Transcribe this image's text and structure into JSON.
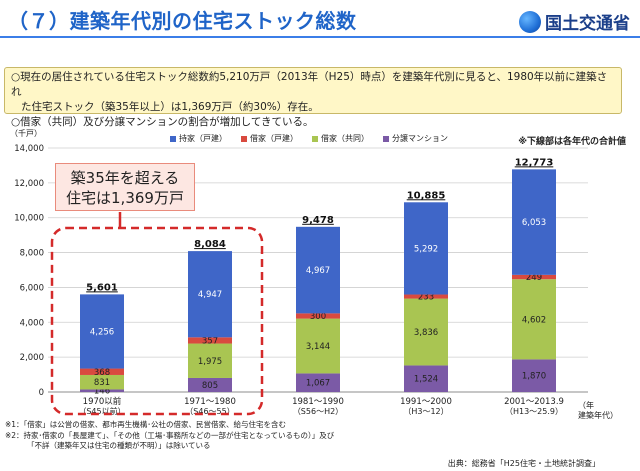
{
  "header": {
    "title": "（７）建築年代別の住宅ストック総数",
    "logo_text": "国土交通省"
  },
  "summary": {
    "line1": "○現在の居住されている住宅ストック総数約5,210万戸（2013年（H25）時点）を建築年代別に見ると、1980年以前に建築され",
    "line2": "た住宅ストック（築35年以上）は1,369万戸（約30%）存在。",
    "line3": "○借家（共同）及び分譲マンションの割合が増加してきている。"
  },
  "callout": {
    "line1": "築35年を超える",
    "line2": "住宅は1,369万戸"
  },
  "note_right": "※下線部は各年代の合計値",
  "unit_left": "（千戸）",
  "unit_right": {
    "line1": "（年",
    "line2": "建築年代）"
  },
  "footnotes": {
    "n1": "※1：「借家」は公営の借家、都市再生機構･公社の借家、民営借家、給与住宅を含む",
    "n2": "※2：持家･借家の「長屋建て」、「その他（工場･事務所などの一部が住宅となっているもの）」及び",
    "n3": "「不詳（建築年又は住宅の種類が不明）」は除いている"
  },
  "source": "出典：総務省「H25住宅・土地統計調査」",
  "colors": {
    "owned": "#3f66c8",
    "rent_detached": "#d94a3f",
    "rent_apartment": "#a9c552",
    "condo": "#7b5aa6",
    "accent": "#d42a2a"
  },
  "chart_data": {
    "type": "bar",
    "stacked": true,
    "categories": [
      "1970以前",
      "1971～1980",
      "1981～1990",
      "1991～2000",
      "2001～2013.9"
    ],
    "sub_categories": [
      "（S45以前）",
      "（S46～55）",
      "（S56～H2）",
      "（H3～12）",
      "（H13～25.9）"
    ],
    "series": [
      {
        "name": "分譲マンション",
        "color": "#7b5aa6",
        "values": [
          146,
          805,
          1067,
          1524,
          1870
        ]
      },
      {
        "name": "借家（共同）",
        "color": "#a9c552",
        "values": [
          831,
          1975,
          3144,
          3836,
          4602
        ]
      },
      {
        "name": "借家（戸建）",
        "color": "#d94a3f",
        "values": [
          368,
          357,
          300,
          233,
          249
        ]
      },
      {
        "name": "持家（戸建）",
        "color": "#3f66c8",
        "values": [
          4256,
          4947,
          4967,
          5292,
          6053
        ]
      }
    ],
    "legend_order": [
      "持家（戸建）",
      "借家（戸建）",
      "借家（共同）",
      "分譲マンション"
    ],
    "totals": [
      "5,601",
      "8,084",
      "9,478",
      "10,885",
      "12,773"
    ],
    "ylim": [
      0,
      14000
    ],
    "yticks": [
      "0",
      "2,000",
      "4,000",
      "6,000",
      "8,000",
      "10,000",
      "12,000",
      "14,000"
    ],
    "ylabel": "（千戸）",
    "grid": true,
    "legend_position": "top"
  }
}
